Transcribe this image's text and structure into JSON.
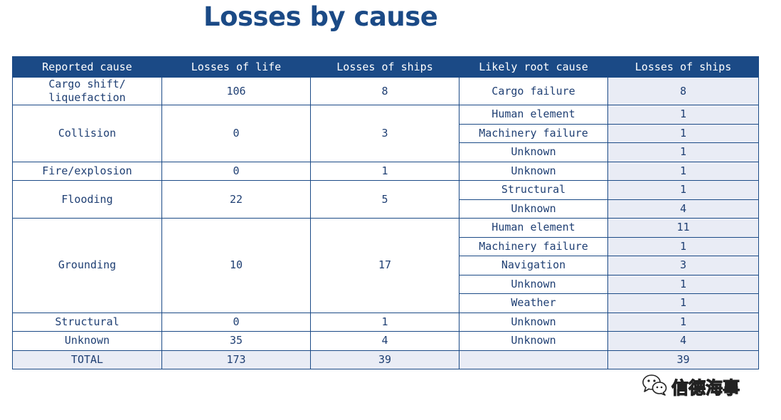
{
  "title": "Losses by cause",
  "chart_data": {
    "type": "table",
    "columns": [
      "Reported cause",
      "Losses of life",
      "Losses of ships",
      "Likely root cause",
      "Losses of ships"
    ],
    "rows": [
      {
        "reported_cause": "Cargo shift/ liquefaction",
        "losses_of_life": "106",
        "losses_of_ships": "8",
        "root_causes": [
          {
            "cause": "Cargo failure",
            "ships": "8"
          }
        ]
      },
      {
        "reported_cause": "Collision",
        "losses_of_life": "0",
        "losses_of_ships": "3",
        "root_causes": [
          {
            "cause": "Human element",
            "ships": "1"
          },
          {
            "cause": "Machinery failure",
            "ships": "1"
          },
          {
            "cause": "Unknown",
            "ships": "1"
          }
        ]
      },
      {
        "reported_cause": "Fire/explosion",
        "losses_of_life": "0",
        "losses_of_ships": "1",
        "root_causes": [
          {
            "cause": "Unknown",
            "ships": "1"
          }
        ]
      },
      {
        "reported_cause": "Flooding",
        "losses_of_life": "22",
        "losses_of_ships": "5",
        "root_causes": [
          {
            "cause": "Structural",
            "ships": "1"
          },
          {
            "cause": "Unknown",
            "ships": "4"
          }
        ]
      },
      {
        "reported_cause": "Grounding",
        "losses_of_life": "10",
        "losses_of_ships": "17",
        "root_causes": [
          {
            "cause": "Human element",
            "ships": "11"
          },
          {
            "cause": "Machinery failure",
            "ships": "1"
          },
          {
            "cause": "Navigation",
            "ships": "3"
          },
          {
            "cause": "Unknown",
            "ships": "1"
          },
          {
            "cause": "Weather",
            "ships": "1"
          }
        ]
      },
      {
        "reported_cause": "Structural",
        "losses_of_life": "0",
        "losses_of_ships": "1",
        "root_causes": [
          {
            "cause": "Unknown",
            "ships": "1"
          }
        ]
      },
      {
        "reported_cause": "Unknown",
        "losses_of_life": "35",
        "losses_of_ships": "4",
        "root_causes": [
          {
            "cause": "Unknown",
            "ships": "4"
          }
        ]
      }
    ],
    "total": {
      "label": "TOTAL",
      "losses_of_life": "173",
      "losses_of_ships": "39",
      "root_cause": "",
      "root_ships": "39"
    }
  },
  "watermark": {
    "icon": "wechat-icon",
    "text": "信德海事"
  },
  "colors": {
    "header_bg": "#1b4a86",
    "text": "#1f3f73",
    "shade": "#e9ecf5"
  }
}
